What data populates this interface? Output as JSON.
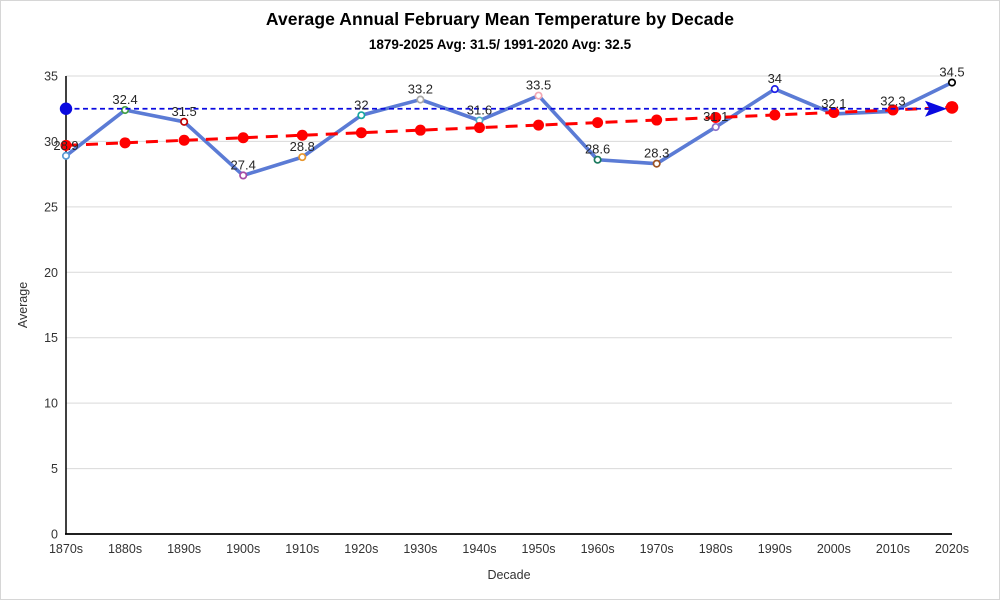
{
  "window": {
    "background_color": "#FFFFFF",
    "border_color": "#D6D6D6"
  },
  "chart_data": {
    "type": "line",
    "title": "Average Annual February Mean Temperature by Decade",
    "subtitle": "1879-2025 Avg: 31.5/ 1991-2020 Avg: 32.5",
    "xlabel": "Decade",
    "ylabel": "Average",
    "ylim": [
      0,
      35
    ],
    "yticks": [
      0,
      5,
      10,
      15,
      20,
      25,
      30,
      35
    ],
    "grid": "horizontal",
    "grid_color": "#D9D9D9",
    "axis_color": "#000000",
    "tick_label_color": "#333333",
    "data_label_color": "#262626",
    "legend": "none",
    "categories": [
      "1870s",
      "1880s",
      "1890s",
      "1900s",
      "1910s",
      "1920s",
      "1930s",
      "1940s",
      "1950s",
      "1960s",
      "1970s",
      "1980s",
      "1990s",
      "2000s",
      "2010s",
      "2020s"
    ],
    "series": [
      {
        "name": "decade-mean-temperature",
        "type": "line",
        "color": "#5B7BD5",
        "marker_fill": "#FFFFFF",
        "values": [
          28.9,
          32.4,
          31.5,
          27.4,
          28.8,
          32,
          33.2,
          31.6,
          33.5,
          28.6,
          28.3,
          31.1,
          34,
          32.1,
          32.3,
          34.5
        ],
        "labels": [
          "28.9",
          "32.4",
          "31.5",
          "27.4",
          "28.8",
          "32",
          "33.2",
          "31.6",
          "33.5",
          "28.6",
          "28.3",
          "31.1",
          "34",
          "32.1",
          "32.3",
          "34.5"
        ],
        "marker_colors": [
          "#5B9BD5",
          "#43A047",
          "#C00000",
          "#A64CA6",
          "#E8962E",
          "#18A7A0",
          "#A6A6A6",
          "#4FAFC4",
          "#F2A8B4",
          "#1B7A5E",
          "#9C5221",
          "#8B6FC8",
          "#1F1FE8",
          "#EDB800",
          "#8C8C8C",
          "#000000"
        ]
      },
      {
        "name": "linear-trendline",
        "type": "trendline",
        "style": "dashed",
        "color": "#FF0000",
        "start_value": 29.7,
        "end_value": 32.6,
        "dot_at_each_category": true
      },
      {
        "name": "1991-2020-average-line",
        "type": "reference-line",
        "style": "dashed",
        "color": "#0A0AE0",
        "value": 32.5,
        "start_marker": "filled-circle",
        "end_marker": "arrow-right"
      }
    ]
  }
}
